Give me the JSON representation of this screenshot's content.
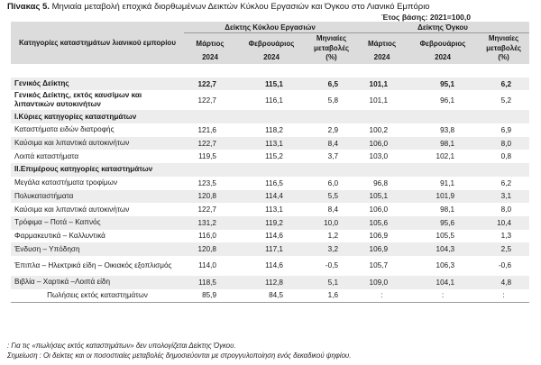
{
  "title": {
    "label": "Πίνακας 5.",
    "text": "Μηνιαία μεταβολή εποχικά διορθωμένων Δεικτών Κύκλου Εργασιών και Όγκου στο Λιανικό Εμπόριο"
  },
  "base_year": "Έτος βάσης: 2021=100,0",
  "header": {
    "category": "Κατηγορίες καταστημάτων λιανικού εμπορίου",
    "group1": "Δείκτης Κύκλου Εργασιών",
    "group2": "Δείκτης Όγκου",
    "march": "Μάρτιος",
    "feb": "Φεβρουάριος",
    "year": "2024",
    "change": "Μηνιαίες μεταβολές",
    "pct": "(%)"
  },
  "rows": [
    {
      "label": "Γενικός Δείκτης",
      "v": [
        "122,7",
        "115,1",
        "6,5",
        "101,1",
        "95,1",
        "6,2"
      ]
    },
    {
      "label": "Γενικός Δείκτης, εκτός καυσίμων και λιπαντικών αυτοκινήτων",
      "v": [
        "122,7",
        "116,1",
        "5,8",
        "101,1",
        "96,1",
        "5,2"
      ]
    },
    {
      "label": "Ι.Κύριες κατηγορίες καταστημάτων"
    },
    {
      "label": "Καταστήματα ειδών διατροφής",
      "v": [
        "121,6",
        "118,2",
        "2,9",
        "100,2",
        "93,8",
        "6,9"
      ]
    },
    {
      "label": "Καύσιμα και λιπαντικά αυτοκινήτων",
      "v": [
        "122,7",
        "113,1",
        "8,4",
        "106,0",
        "98,1",
        "8,0"
      ]
    },
    {
      "label": "Λοιπά καταστήματα",
      "v": [
        "119,5",
        "115,2",
        "3,7",
        "103,0",
        "102,1",
        "0,8"
      ]
    },
    {
      "label": "ΙΙ.Επιμέρους κατηγορίες καταστημάτων"
    },
    {
      "label": "Μεγάλα καταστήματα τροφίμων",
      "v": [
        "123,5",
        "116,5",
        "6,0",
        "96,8",
        "91,1",
        "6,2"
      ]
    },
    {
      "label": "Πολυκαταστήματα",
      "v": [
        "120,8",
        "114,4",
        "5,5",
        "105,1",
        "101,9",
        "3,1"
      ]
    },
    {
      "label": "Καύσιμα και λιπαντικά αυτοκινήτων",
      "v": [
        "122,7",
        "113,1",
        "8,4",
        "106,0",
        "98,1",
        "8,0"
      ]
    },
    {
      "label": "Τρόφιμα – Ποτά – Καπνός",
      "v": [
        "131,2",
        "119,2",
        "10,0",
        "105,6",
        "95,6",
        "10,4"
      ]
    },
    {
      "label": "Φαρμακευτικά – Καλλυντικά",
      "v": [
        "116,0",
        "114,6",
        "1,2",
        "106,9",
        "105,5",
        "1,3"
      ]
    },
    {
      "label": "Ένδυση – Υπόδηση",
      "v": [
        "120,8",
        "117,1",
        "3,2",
        "106,9",
        "104,3",
        "2,5"
      ]
    },
    {
      "label": "Έπιπλα – Ηλεκτρικά είδη – Οικιακός εξοπλισμός",
      "v": [
        "114,0",
        "114,6",
        "-0,5",
        "105,7",
        "106,3",
        "-0,6"
      ]
    },
    {
      "label": "Βιβλία – Χαρτικά –Λοιπά είδη",
      "v": [
        "118,5",
        "112,8",
        "5,1",
        "109,0",
        "104,1",
        "4,8"
      ]
    },
    {
      "label": "Πωλήσεις εκτός καταστημάτων",
      "v": [
        "85,9",
        "84,5",
        "1,6",
        ":",
        ":",
        ":"
      ]
    }
  ],
  "footnotes": {
    "f1": ": Για τις «πωλήσεις εκτός καταστημάτων» δεν υπολογίζεται Δείκτης Όγκου.",
    "f2": "Σημείωση : Οι δείκτες και οι ποσοστιαίες μεταβολές δημοσιεύονται με στρογγυλοποίηση ενός δεκαδικού ψηφίου."
  }
}
